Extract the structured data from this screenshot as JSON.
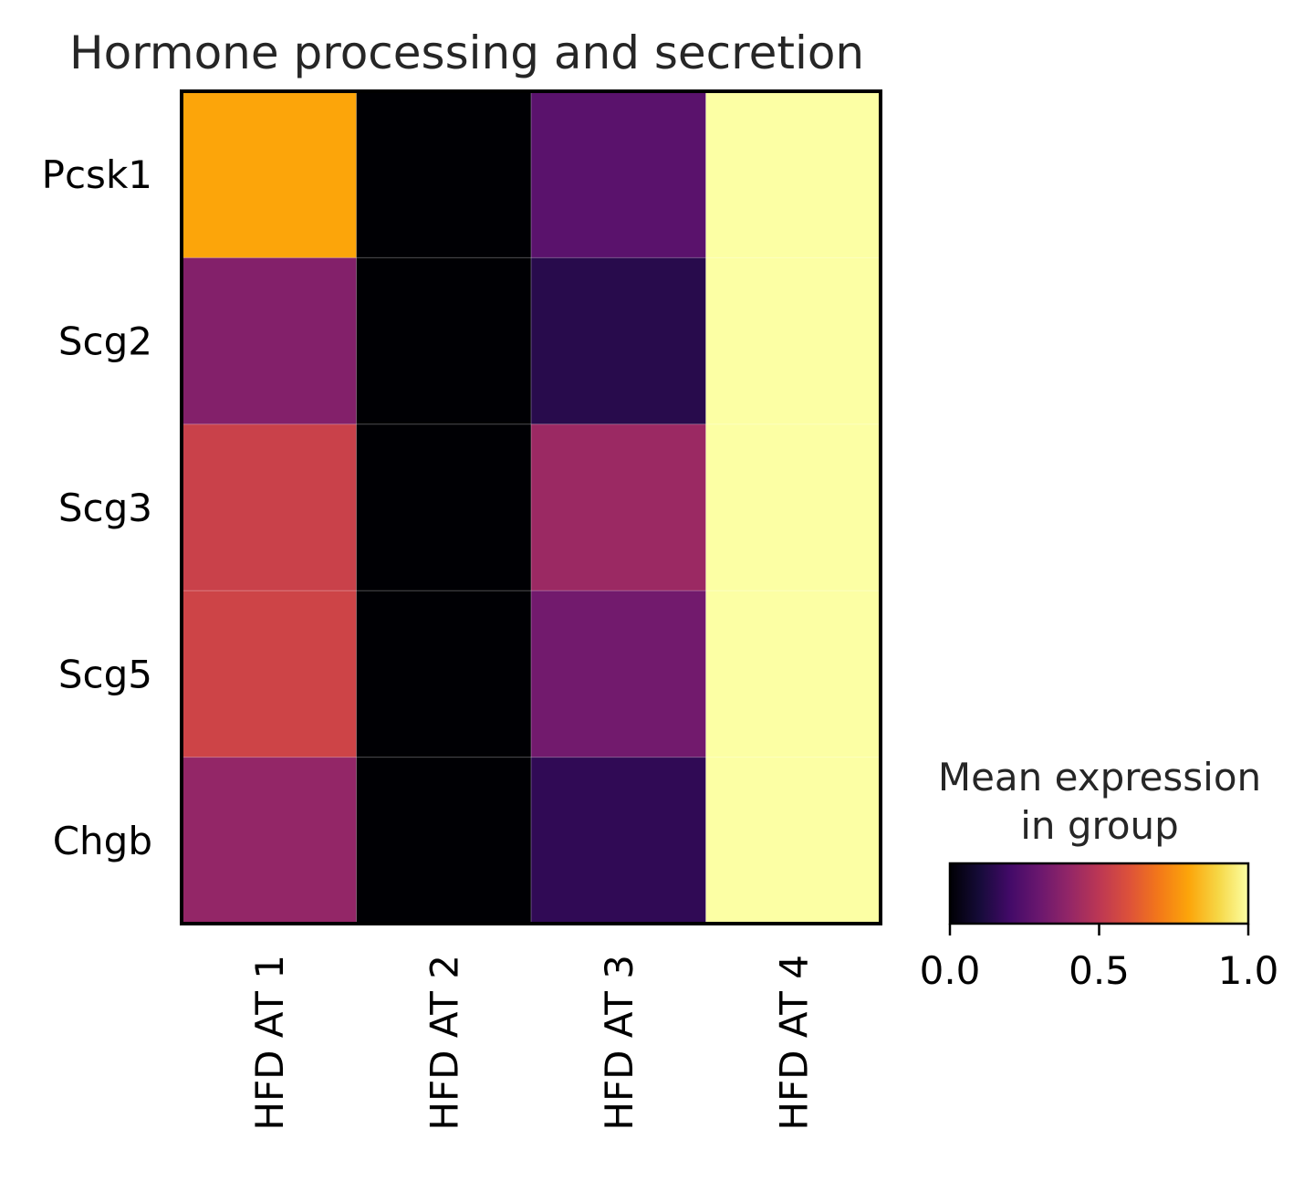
{
  "chart_data": {
    "type": "heatmap",
    "title": "Hormone processing and secretion",
    "rows": [
      "Pcsk1",
      "Scg2",
      "Scg3",
      "Scg5",
      "Chgb"
    ],
    "columns": [
      "HFD AT 1",
      "HFD AT 2",
      "HFD AT 3",
      "HFD AT 4"
    ],
    "values": [
      [
        0.8,
        0.0,
        0.26,
        1.0
      ],
      [
        0.36,
        0.0,
        0.14,
        1.0
      ],
      [
        0.54,
        0.0,
        0.42,
        1.0
      ],
      [
        0.55,
        0.0,
        0.32,
        1.0
      ],
      [
        0.4,
        0.0,
        0.16,
        1.0
      ]
    ],
    "colormap": "inferno",
    "colorbar": {
      "title_lines": [
        "Mean expression",
        "in group"
      ],
      "ticks": [
        "0.0",
        "0.5",
        "1.0"
      ],
      "range": [
        0,
        1
      ]
    }
  }
}
